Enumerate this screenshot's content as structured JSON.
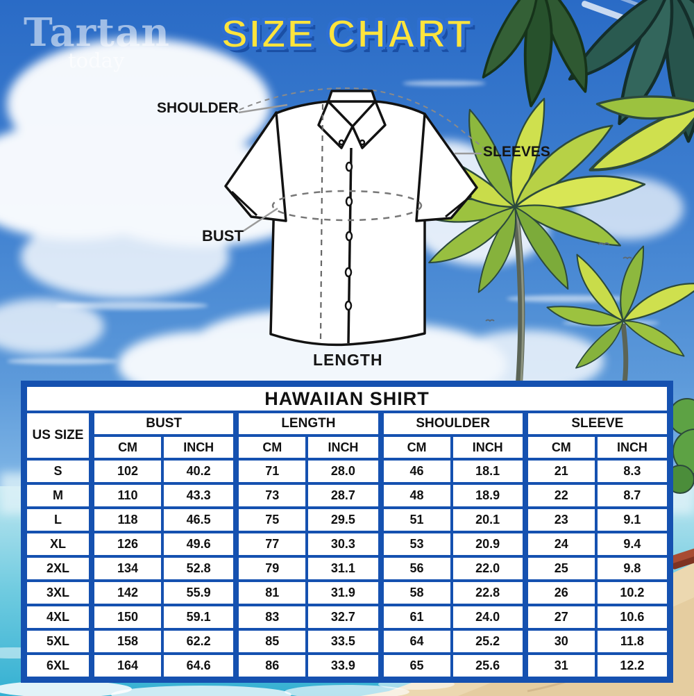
{
  "brand": {
    "name": "Tartan",
    "tagline": "today"
  },
  "title": "SIZE CHART",
  "diagram": {
    "shoulder_label": "SHOULDER",
    "sleeves_label": "SLEEVES",
    "bust_label": "BUST",
    "length_label": "LENGTH"
  },
  "colors": {
    "table_blue": "#1551b0",
    "header_yellow": "#f8e33c",
    "title_yellow": "#ffe43c",
    "title_outline_blue": "#2e6fd2"
  },
  "table": {
    "title": "HAWAIIAN SHIRT",
    "size_col_header": "US SIZE",
    "groups": [
      {
        "label": "BUST"
      },
      {
        "label": "LENGTH"
      },
      {
        "label": "SHOULDER"
      },
      {
        "label": "SLEEVE"
      }
    ],
    "unit_headers": [
      "CM",
      "INCH"
    ],
    "rows": [
      {
        "size": "S",
        "values": [
          "102",
          "40.2",
          "71",
          "28.0",
          "46",
          "18.1",
          "21",
          "8.3"
        ]
      },
      {
        "size": "M",
        "values": [
          "110",
          "43.3",
          "73",
          "28.7",
          "48",
          "18.9",
          "22",
          "8.7"
        ]
      },
      {
        "size": "L",
        "values": [
          "118",
          "46.5",
          "75",
          "29.5",
          "51",
          "20.1",
          "23",
          "9.1"
        ]
      },
      {
        "size": "XL",
        "values": [
          "126",
          "49.6",
          "77",
          "30.3",
          "53",
          "20.9",
          "24",
          "9.4"
        ]
      },
      {
        "size": "2XL",
        "values": [
          "134",
          "52.8",
          "79",
          "31.1",
          "56",
          "22.0",
          "25",
          "9.8"
        ]
      },
      {
        "size": "3XL",
        "values": [
          "142",
          "55.9",
          "81",
          "31.9",
          "58",
          "22.8",
          "26",
          "10.2"
        ]
      },
      {
        "size": "4XL",
        "values": [
          "150",
          "59.1",
          "83",
          "32.7",
          "61",
          "24.0",
          "27",
          "10.6"
        ]
      },
      {
        "size": "5XL",
        "values": [
          "158",
          "62.2",
          "85",
          "33.5",
          "64",
          "25.2",
          "30",
          "11.8"
        ]
      },
      {
        "size": "6XL",
        "values": [
          "164",
          "64.6",
          "86",
          "33.9",
          "65",
          "25.6",
          "31",
          "12.2"
        ]
      }
    ]
  },
  "chart_data": {
    "type": "table",
    "title": "HAWAIIAN SHIRT",
    "columns": [
      "US SIZE",
      "BUST CM",
      "BUST INCH",
      "LENGTH CM",
      "LENGTH INCH",
      "SHOULDER CM",
      "SHOULDER INCH",
      "SLEEVE CM",
      "SLEEVE INCH"
    ],
    "rows": [
      [
        "S",
        102,
        40.2,
        71,
        28.0,
        46,
        18.1,
        21,
        8.3
      ],
      [
        "M",
        110,
        43.3,
        73,
        28.7,
        48,
        18.9,
        22,
        8.7
      ],
      [
        "L",
        118,
        46.5,
        75,
        29.5,
        51,
        20.1,
        23,
        9.1
      ],
      [
        "XL",
        126,
        49.6,
        77,
        30.3,
        53,
        20.9,
        24,
        9.4
      ],
      [
        "2XL",
        134,
        52.8,
        79,
        31.1,
        56,
        22.0,
        25,
        9.8
      ],
      [
        "3XL",
        142,
        55.9,
        81,
        31.9,
        58,
        22.8,
        26,
        10.2
      ],
      [
        "4XL",
        150,
        59.1,
        83,
        32.7,
        61,
        24.0,
        27,
        10.6
      ],
      [
        "5XL",
        158,
        62.2,
        85,
        33.5,
        64,
        25.2,
        30,
        11.8
      ],
      [
        "6XL",
        164,
        64.6,
        86,
        33.9,
        65,
        25.6,
        31,
        12.2
      ]
    ]
  }
}
